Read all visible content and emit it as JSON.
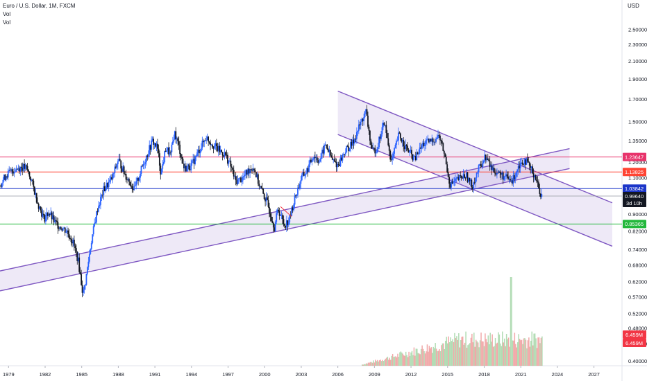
{
  "header": {
    "symbol_line": "Euro / U.S. Dollar, 1M, FXCM",
    "vol_1": "Vol",
    "vol_2": "Vol",
    "currency": "USD"
  },
  "chart_data": {
    "type": "candlestick",
    "title": "Euro / U.S. Dollar, 1M, FXCM",
    "y_axis": {
      "scale": "log",
      "unit": "USD",
      "range": [
        0.39,
        2.9
      ],
      "ticks": [
        2.5,
        2.3,
        2.1,
        1.9,
        1.7,
        1.5,
        1.35,
        1.2,
        1.1,
        0.9,
        0.82,
        0.74,
        0.68,
        0.62,
        0.57,
        0.52,
        0.48,
        0.44,
        0.4
      ],
      "tick_labels": [
        "2.50000",
        "2.30000",
        "2.10000",
        "1.90000",
        "1.70000",
        "1.50000",
        "1.35000",
        "1.20000",
        "1.10000",
        "0.90000",
        "0.82000",
        "0.74000",
        "0.68000",
        "0.62000",
        "0.57000",
        "0.52000",
        "0.48000",
        "0.44000",
        "0.40000"
      ]
    },
    "x_axis": {
      "range": [
        1978.3,
        2029.3
      ],
      "ticks": [
        1979,
        1982,
        1985,
        1988,
        1991,
        1994,
        1997,
        2000,
        2003,
        2006,
        2009,
        2012,
        2015,
        2018,
        2021,
        2024,
        2027
      ],
      "tick_labels": [
        "1979",
        "1982",
        "1985",
        "1988",
        "1991",
        "1994",
        "1997",
        "2000",
        "2003",
        "2006",
        "2009",
        "2012",
        "2015",
        "2018",
        "2021",
        "2024",
        "2027"
      ]
    },
    "price_path": [
      [
        1978.3,
        1.06
      ],
      [
        1978.8,
        1.12
      ],
      [
        1979.4,
        1.15
      ],
      [
        1980.0,
        1.17
      ],
      [
        1980.5,
        1.16
      ],
      [
        1980.9,
        1.08
      ],
      [
        1981.4,
        0.96
      ],
      [
        1981.9,
        0.88
      ],
      [
        1982.3,
        0.91
      ],
      [
        1982.8,
        0.86
      ],
      [
        1983.3,
        0.84
      ],
      [
        1983.8,
        0.82
      ],
      [
        1984.3,
        0.77
      ],
      [
        1984.7,
        0.7
      ],
      [
        1985.1,
        0.58
      ],
      [
        1985.3,
        0.62
      ],
      [
        1985.8,
        0.78
      ],
      [
        1986.3,
        0.93
      ],
      [
        1986.8,
        1.03
      ],
      [
        1987.5,
        1.1
      ],
      [
        1988.0,
        1.22
      ],
      [
        1988.5,
        1.13
      ],
      [
        1989.0,
        1.07
      ],
      [
        1989.3,
        1.03
      ],
      [
        1990.0,
        1.18
      ],
      [
        1990.8,
        1.35
      ],
      [
        1991.2,
        1.3
      ],
      [
        1991.5,
        1.13
      ],
      [
        1991.9,
        1.3
      ],
      [
        1992.3,
        1.25
      ],
      [
        1992.6,
        1.42
      ],
      [
        1993.0,
        1.3
      ],
      [
        1993.4,
        1.16
      ],
      [
        1994.0,
        1.18
      ],
      [
        1994.6,
        1.28
      ],
      [
        1995.2,
        1.38
      ],
      [
        1995.7,
        1.33
      ],
      [
        1996.3,
        1.28
      ],
      [
        1996.8,
        1.25
      ],
      [
        1997.3,
        1.16
      ],
      [
        1997.6,
        1.08
      ],
      [
        1998.2,
        1.1
      ],
      [
        1998.8,
        1.16
      ],
      [
        1999.1,
        1.17
      ],
      [
        1999.6,
        1.05
      ],
      [
        2000.2,
        0.96
      ],
      [
        2000.8,
        0.84
      ],
      [
        2001.1,
        0.93
      ],
      [
        2001.6,
        0.85
      ],
      [
        2002.0,
        0.87
      ],
      [
        2002.5,
        0.99
      ],
      [
        2003.0,
        1.1
      ],
      [
        2003.5,
        1.15
      ],
      [
        2004.0,
        1.25
      ],
      [
        2004.5,
        1.21
      ],
      [
        2005.0,
        1.33
      ],
      [
        2005.5,
        1.22
      ],
      [
        2006.0,
        1.18
      ],
      [
        2006.6,
        1.28
      ],
      [
        2007.2,
        1.33
      ],
      [
        2007.7,
        1.45
      ],
      [
        2008.3,
        1.59
      ],
      [
        2008.8,
        1.27
      ],
      [
        2009.2,
        1.3
      ],
      [
        2009.8,
        1.5
      ],
      [
        2010.4,
        1.2
      ],
      [
        2011.0,
        1.4
      ],
      [
        2011.6,
        1.3
      ],
      [
        2012.3,
        1.22
      ],
      [
        2013.0,
        1.33
      ],
      [
        2013.7,
        1.35
      ],
      [
        2014.3,
        1.39
      ],
      [
        2014.7,
        1.27
      ],
      [
        2015.2,
        1.06
      ],
      [
        2015.8,
        1.09
      ],
      [
        2016.5,
        1.12
      ],
      [
        2017.0,
        1.05
      ],
      [
        2017.5,
        1.15
      ],
      [
        2018.1,
        1.24
      ],
      [
        2018.6,
        1.16
      ],
      [
        2019.2,
        1.13
      ],
      [
        2019.8,
        1.1
      ],
      [
        2020.3,
        1.08
      ],
      [
        2020.8,
        1.18
      ],
      [
        2021.3,
        1.22
      ],
      [
        2021.8,
        1.16
      ],
      [
        2022.2,
        1.11
      ],
      [
        2022.5,
        1.03
      ],
      [
        2022.75,
        0.9964
      ]
    ],
    "volume_label": "Vol",
    "volume_start_year": 2008.0,
    "volume_peak_year": 2020.2,
    "horizontal_levels": [
      {
        "price": 1.23647,
        "label": "1.23647",
        "color": "#e8336b",
        "tag": "#e8336b"
      },
      {
        "price": 1.13825,
        "label": "1.13825",
        "color": "#ff4433",
        "tag": "#ff4433"
      },
      {
        "price": 1.03842,
        "label": "1.03842",
        "color": "#1c36c9",
        "tag": "#1c36c9"
      },
      {
        "price": 0.85365,
        "label": "0.85365",
        "color": "#22b83b",
        "tag": "#22b83b"
      }
    ],
    "last_price": {
      "price": 0.9964,
      "label": "0.99640",
      "countdown": "3d 10h"
    },
    "volume_tags": [
      "6.459M",
      "6.459M"
    ],
    "channels": [
      {
        "name": "falling-channel",
        "upper": [
          [
            2006.0,
            1.78
          ],
          [
            2028.5,
            0.96
          ]
        ],
        "offset": -0.13
      },
      {
        "name": "rising-channel",
        "lower": [
          [
            1978.3,
            0.59
          ],
          [
            2025.0,
            1.16
          ]
        ],
        "offset": 0.034
      }
    ],
    "colors": {
      "up": "#2962ff",
      "down": "#131722",
      "vol_up": "#a5d6a7",
      "vol_down": "#ef9a9a",
      "channel": "#7e57c2"
    }
  }
}
